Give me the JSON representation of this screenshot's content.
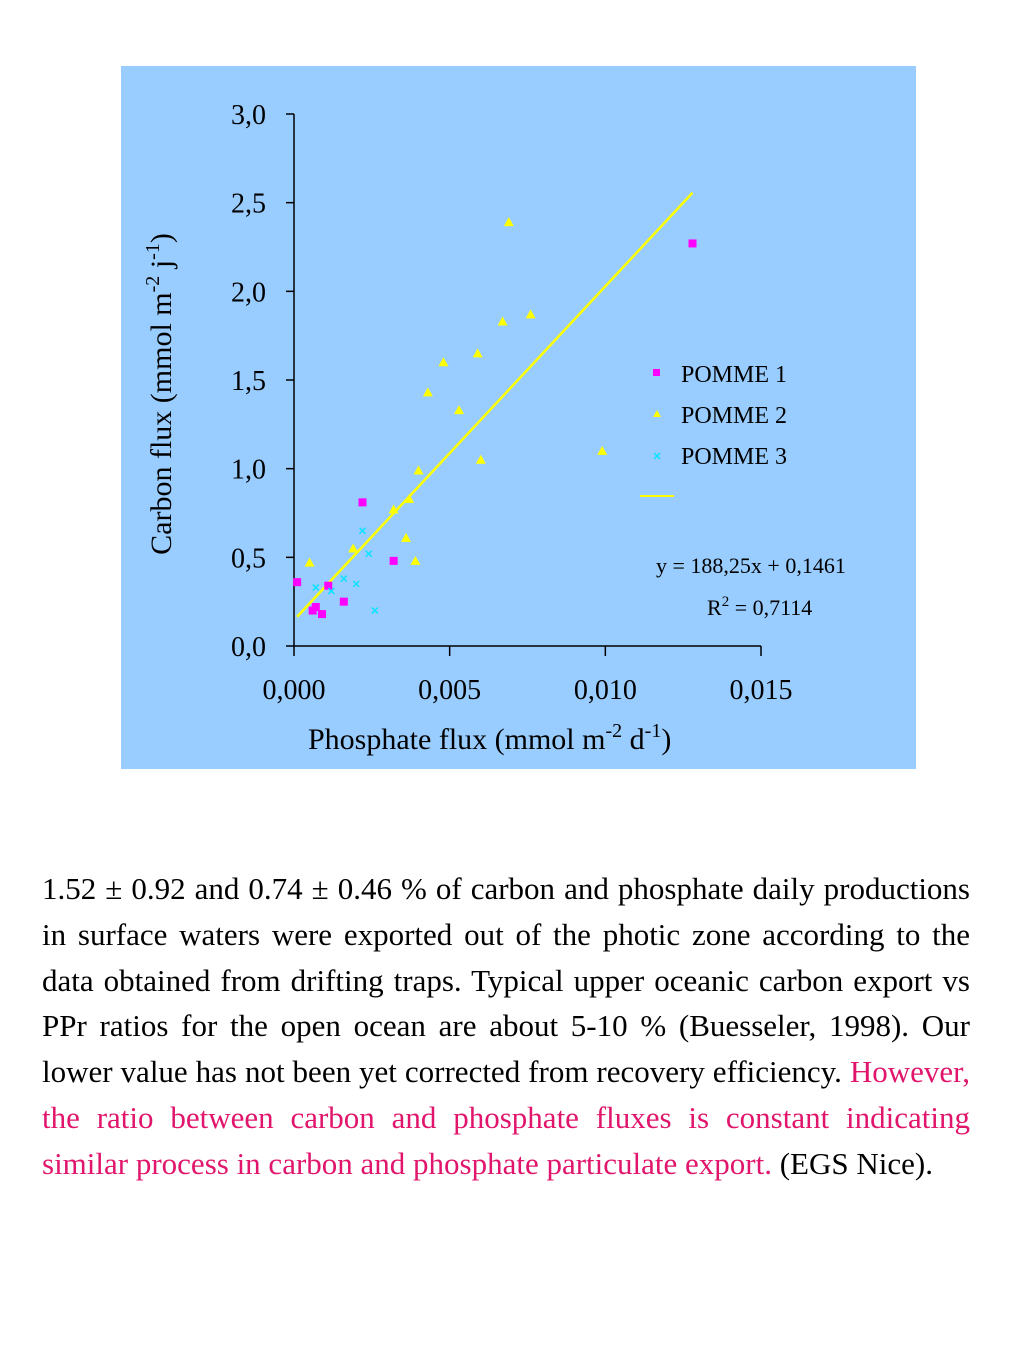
{
  "chart_data": {
    "type": "scatter",
    "background": "#99ccff",
    "xlabel": "Phosphate flux (mmol m",
    "xlabel_sup1": "-2",
    "xlabel_mid": " d",
    "xlabel_sup2": "-1",
    "xlabel_end": ")",
    "ylabel": "Carbon flux (mmol m",
    "ylabel_sup1": "-2",
    "ylabel_mid": " j",
    "ylabel_sup2": "-1",
    "ylabel_end": ")",
    "xlim": [
      0,
      0.015
    ],
    "ylim": [
      0,
      3.0
    ],
    "x_ticks": [
      {
        "value": 0.0,
        "label": "0,000"
      },
      {
        "value": 0.005,
        "label": "0,005"
      },
      {
        "value": 0.01,
        "label": "0,010"
      },
      {
        "value": 0.015,
        "label": "0,015"
      }
    ],
    "y_ticks": [
      {
        "value": 0.0,
        "label": "0,0"
      },
      {
        "value": 0.5,
        "label": "0,5"
      },
      {
        "value": 1.0,
        "label": "1,0"
      },
      {
        "value": 1.5,
        "label": "1,5"
      },
      {
        "value": 2.0,
        "label": "2,0"
      },
      {
        "value": 2.5,
        "label": "2,5"
      },
      {
        "value": 3.0,
        "label": "3,0"
      }
    ],
    "grid": false,
    "legend_position": "right",
    "series": [
      {
        "name": "POMME 1",
        "marker": "square",
        "color": "#ff00ff",
        "points": [
          [
            0.0001,
            0.36
          ],
          [
            0.0006,
            0.2
          ],
          [
            0.0007,
            0.22
          ],
          [
            0.0009,
            0.18
          ],
          [
            0.0011,
            0.34
          ],
          [
            0.0016,
            0.25
          ],
          [
            0.0022,
            0.81
          ],
          [
            0.0032,
            0.48
          ],
          [
            0.0128,
            2.27
          ]
        ]
      },
      {
        "name": "POMME 2",
        "marker": "triangle",
        "color": "#ffff00",
        "points": [
          [
            0.0005,
            0.47
          ],
          [
            0.0019,
            0.55
          ],
          [
            0.0032,
            0.77
          ],
          [
            0.0036,
            0.61
          ],
          [
            0.0037,
            0.83
          ],
          [
            0.0039,
            0.48
          ],
          [
            0.004,
            0.99
          ],
          [
            0.0043,
            1.43
          ],
          [
            0.0048,
            1.6
          ],
          [
            0.0053,
            1.33
          ],
          [
            0.0059,
            1.65
          ],
          [
            0.006,
            1.05
          ],
          [
            0.0067,
            1.83
          ],
          [
            0.0069,
            2.39
          ],
          [
            0.0076,
            1.87
          ],
          [
            0.0099,
            1.1
          ]
        ]
      },
      {
        "name": "POMME 3",
        "marker": "x",
        "color": "#00e5ff",
        "points": [
          [
            0.0007,
            0.33
          ],
          [
            0.0012,
            0.31
          ],
          [
            0.0016,
            0.38
          ],
          [
            0.002,
            0.35
          ],
          [
            0.0022,
            0.65
          ],
          [
            0.0024,
            0.52
          ],
          [
            0.0026,
            0.2
          ]
        ]
      }
    ],
    "trendline": {
      "color": "#ffff00",
      "slope": 188.25,
      "intercept": 0.1461,
      "x_range": [
        0.0001,
        0.0128
      ],
      "equation": "y = 188,25x + 0,1461",
      "r2_label": "R",
      "r2_sup": "2",
      "r2_value": " = 0,7114"
    }
  },
  "paragraph": {
    "text_black": "1.52 ± 0.92 and 0.74 ± 0.46 % of carbon and phosphate daily productions in surface waters were exported out of the photic zone according to the data obtained from drifting traps. Typical upper oceanic carbon export vs PPr ratios for the open ocean are about 5-10 % (Buesseler, 1998).  Our lower value has not been yet corrected from recovery efficiency.",
    "text_highlight": "However, the ratio between carbon and phosphate fluxes is constant indicating similar process in carbon and phosphate particulate export.",
    "text_end": " (EGS Nice).",
    "highlight_color": "#e0156b"
  }
}
